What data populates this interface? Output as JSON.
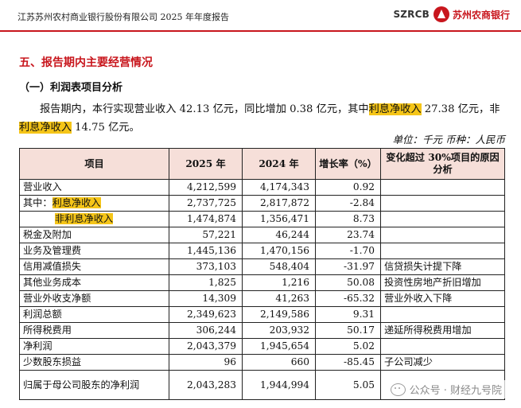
{
  "header": {
    "title": "江苏苏州农村商业银行股份有限公司 2025 年年度报告",
    "logo_code": "SZRCB",
    "logo_name": "苏州农商银行",
    "accent_color": "#c8161d"
  },
  "section_title": "五、报告期内主要经营情况",
  "sub_title": "（一）利润表项目分析",
  "paragraph": {
    "p1": "报告期内，本行实现营业收入 42.13 亿元，同比增加 0.38 亿元，其中",
    "hl1": "利息净收入",
    "p2": " 27.38 亿元，非",
    "hl2": "利息净收入",
    "p3": " 14.75 亿元。",
    "highlight_color": "#f5c518"
  },
  "unit_note": "单位：千元    币种：人民币",
  "table": {
    "headers": {
      "item": "项目",
      "y2025": "2025 年",
      "y2024": "2024 年",
      "growth": "增长率（%）",
      "reason": "变化超过 30%项目的原因分析"
    },
    "rows": [
      {
        "item": "营业收入",
        "y2025": "4,212,599",
        "y2024": "4,174,343",
        "growth": "0.92",
        "reason": ""
      },
      {
        "item_prefix": "其中：",
        "item": "利息净收入",
        "y2025": "2,737,725",
        "y2024": "2,817,872",
        "growth": "-2.84",
        "reason": ""
      },
      {
        "item": "非利息净收入",
        "y2025": "1,474,874",
        "y2024": "1,356,471",
        "growth": "8.73",
        "reason": ""
      },
      {
        "item": "税金及附加",
        "y2025": "57,221",
        "y2024": "46,244",
        "growth": "23.74",
        "reason": ""
      },
      {
        "item": "业务及管理费",
        "y2025": "1,445,136",
        "y2024": "1,470,156",
        "growth": "-1.70",
        "reason": ""
      },
      {
        "item": "信用减值损失",
        "y2025": "373,103",
        "y2024": "548,404",
        "growth": "-31.97",
        "reason": "信贷损失计提下降"
      },
      {
        "item": "其他业务成本",
        "y2025": "1,825",
        "y2024": "1,216",
        "growth": "50.08",
        "reason": "投资性房地产折旧增加"
      },
      {
        "item": "营业外收支净额",
        "y2025": "14,309",
        "y2024": "41,263",
        "growth": "-65.32",
        "reason": "营业外收入下降"
      },
      {
        "item": "利润总额",
        "y2025": "2,349,623",
        "y2024": "2,149,586",
        "growth": "9.31",
        "reason": ""
      },
      {
        "item": "所得税费用",
        "y2025": "306,244",
        "y2024": "203,932",
        "growth": "50.17",
        "reason": "递延所得税费用增加"
      },
      {
        "item": "净利润",
        "y2025": "2,043,379",
        "y2024": "1,945,654",
        "growth": "5.02",
        "reason": ""
      },
      {
        "item": "少数股东损益",
        "y2025": "96",
        "y2024": "660",
        "growth": "-85.45",
        "reason": "子公司减少"
      },
      {
        "item": "归属于母公司股东的净利润",
        "y2025": "2,043,283",
        "y2024": "1,944,994",
        "growth": "5.05",
        "reason": ""
      }
    ]
  },
  "watermark": {
    "icon": "wechat-icon",
    "text": "公众号 · 财经九号院"
  }
}
